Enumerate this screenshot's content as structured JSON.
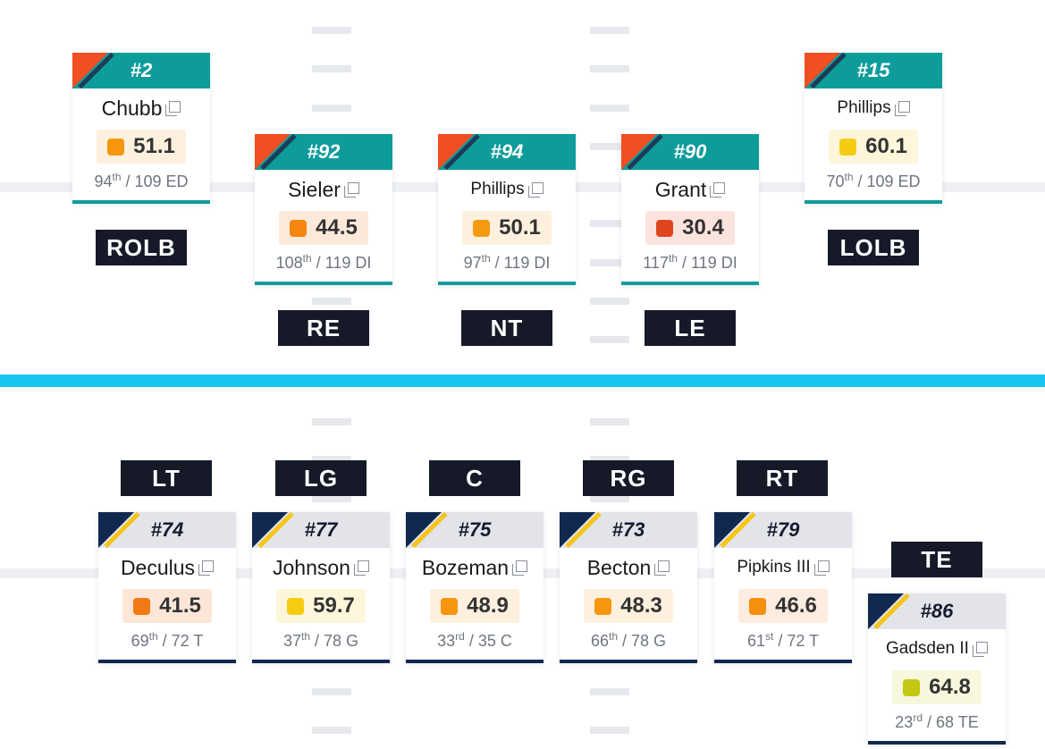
{
  "colors": {
    "defense_header": "#0e9c9b",
    "defense_accent": "#f04e23",
    "offense_header": "#e2e4ea",
    "offense_accent": "#11284f",
    "offense_stripe": "#f5c518",
    "line_of_scrimmage": "#14c6f0",
    "position_label_bg": "#161a28"
  },
  "icons": {
    "copy": "copy-icon"
  },
  "defense": [
    {
      "id": "rolb",
      "number": "#2",
      "name": "Chubb",
      "grade": "51.1",
      "grade_color": "#f5960e",
      "grade_bg": "#fdf0de",
      "rank": "94",
      "rank_suffix": "th",
      "rank_of": " / 109 ED",
      "position": "ROLB"
    },
    {
      "id": "re",
      "number": "#92",
      "name": "Sieler",
      "grade": "44.5",
      "grade_color": "#f5860e",
      "grade_bg": "#fde9d9",
      "rank": "108",
      "rank_suffix": "th",
      "rank_of": " / 119 DI",
      "position": "RE"
    },
    {
      "id": "nt",
      "number": "#94",
      "name": "Phillips",
      "grade": "50.1",
      "grade_color": "#f59a0e",
      "grade_bg": "#fdf0de",
      "rank": "97",
      "rank_suffix": "th",
      "rank_of": " / 119 DI",
      "position": "NT"
    },
    {
      "id": "le",
      "number": "#90",
      "name": "Grant",
      "grade": "30.4",
      "grade_color": "#e0461e",
      "grade_bg": "#fbe3de",
      "rank": "117",
      "rank_suffix": "th",
      "rank_of": " / 119 DI",
      "position": "LE"
    },
    {
      "id": "lolb",
      "number": "#15",
      "name": "Phillips",
      "grade": "60.1",
      "grade_color": "#f5cc12",
      "grade_bg": "#fdf6db",
      "rank": "70",
      "rank_suffix": "th",
      "rank_of": " / 109 ED",
      "position": "LOLB"
    }
  ],
  "offense": [
    {
      "id": "lt",
      "number": "#74",
      "name": "Deculus",
      "grade": "41.5",
      "grade_color": "#f27a14",
      "grade_bg": "#fde6d8",
      "rank": "69",
      "rank_suffix": "th",
      "rank_of": " / 72 T",
      "position": "LT"
    },
    {
      "id": "lg",
      "number": "#77",
      "name": "Johnson",
      "grade": "59.7",
      "grade_color": "#f5cc12",
      "grade_bg": "#fdf6db",
      "rank": "37",
      "rank_suffix": "th",
      "rank_of": " / 78 G",
      "position": "LG"
    },
    {
      "id": "c",
      "number": "#75",
      "name": "Bozeman",
      "grade": "48.9",
      "grade_color": "#f5960e",
      "grade_bg": "#fdf0de",
      "rank": "33",
      "rank_suffix": "rd",
      "rank_of": " / 35 C",
      "position": "C"
    },
    {
      "id": "rg",
      "number": "#73",
      "name": "Becton",
      "grade": "48.3",
      "grade_color": "#f5960e",
      "grade_bg": "#fdf0de",
      "rank": "66",
      "rank_suffix": "th",
      "rank_of": " / 78 G",
      "position": "RG"
    },
    {
      "id": "rt",
      "number": "#79",
      "name": "Pipkins III",
      "grade": "46.6",
      "grade_color": "#f5900e",
      "grade_bg": "#fdece0",
      "rank": "61",
      "rank_suffix": "st",
      "rank_of": " / 72 T",
      "position": "RT"
    },
    {
      "id": "te",
      "number": "#86",
      "name": "Gadsden II",
      "grade": "64.8",
      "grade_color": "#c4c813",
      "grade_bg": "#f6f7dc",
      "rank": "23",
      "rank_suffix": "rd",
      "rank_of": " / 68 TE",
      "position": "TE"
    }
  ]
}
